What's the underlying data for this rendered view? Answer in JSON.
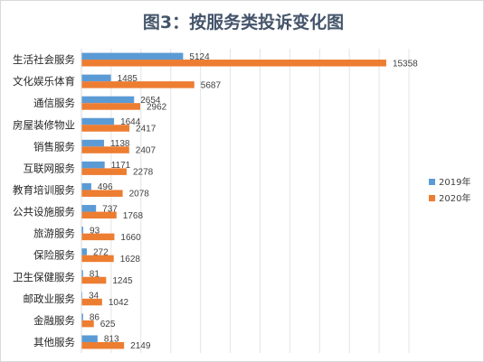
{
  "chart_data": {
    "type": "bar",
    "orientation": "horizontal",
    "title": "图3：按服务类投诉变化图",
    "categories": [
      "生活社会服务",
      "文化娱乐体育",
      "通信服务",
      "房屋装修物业",
      "销售服务",
      "互联网服务",
      "教育培训服务",
      "公共设施服务",
      "旅游服务",
      "保险服务",
      "卫生保健服务",
      "邮政业服务",
      "金融服务",
      "其他服务"
    ],
    "series": [
      {
        "name": "2019年",
        "color": "#5b9bd5",
        "values": [
          5124,
          1485,
          2654,
          1644,
          1138,
          1171,
          496,
          737,
          93,
          272,
          81,
          34,
          86,
          813
        ]
      },
      {
        "name": "2020年",
        "color": "#ed7d31",
        "values": [
          15358,
          5687,
          2962,
          2417,
          2407,
          2278,
          2078,
          1768,
          1660,
          1628,
          1245,
          1042,
          625,
          2149
        ]
      }
    ],
    "xlim": [
      0,
      16500
    ],
    "grid": true,
    "data_labels": true,
    "legend_position": "right"
  }
}
